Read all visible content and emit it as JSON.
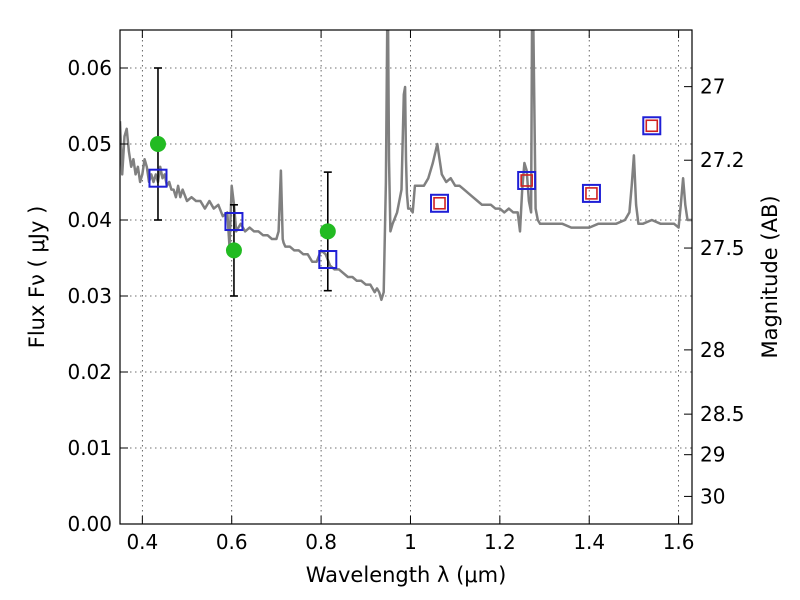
{
  "chart_data": {
    "type": "scatter",
    "xlabel": "Wavelength  λ (μm)",
    "ylabel": "Flux  Fν  ( μJy )",
    "y2label": "Magnitude (AB)",
    "xlim": [
      0.35,
      1.63
    ],
    "ylim": [
      0.0,
      0.065
    ],
    "grid": true,
    "x_ticks": [
      {
        "value": 0.4,
        "label": "0.4"
      },
      {
        "value": 0.6,
        "label": "0.6"
      },
      {
        "value": 0.8,
        "label": "0.8"
      },
      {
        "value": 1.0,
        "label": "1"
      },
      {
        "value": 1.2,
        "label": "1.2"
      },
      {
        "value": 1.4,
        "label": "1.4"
      },
      {
        "value": 1.6,
        "label": "1.6"
      }
    ],
    "y_ticks": [
      {
        "value": 0.0,
        "label": "0.00"
      },
      {
        "value": 0.01,
        "label": "0.01"
      },
      {
        "value": 0.02,
        "label": "0.02"
      },
      {
        "value": 0.03,
        "label": "0.03"
      },
      {
        "value": 0.04,
        "label": "0.04"
      },
      {
        "value": 0.05,
        "label": "0.05"
      },
      {
        "value": 0.06,
        "label": "0.06"
      }
    ],
    "mag_ticks": [
      {
        "value": 27,
        "label": "27"
      },
      {
        "value": 27.2,
        "label": "27.2"
      },
      {
        "value": 27.5,
        "label": "27.5"
      },
      {
        "value": 28,
        "label": "28"
      },
      {
        "value": 28.5,
        "label": "28.5"
      },
      {
        "value": 29,
        "label": "29"
      },
      {
        "value": 30,
        "label": "30"
      }
    ],
    "series": [
      {
        "type": "line",
        "color": "#808080",
        "x": [
          0.35,
          0.355,
          0.36,
          0.365,
          0.37,
          0.375,
          0.38,
          0.385,
          0.39,
          0.395,
          0.4,
          0.405,
          0.41,
          0.415,
          0.42,
          0.425,
          0.43,
          0.435,
          0.44,
          0.445,
          0.45,
          0.455,
          0.46,
          0.465,
          0.47,
          0.475,
          0.48,
          0.485,
          0.49,
          0.5,
          0.51,
          0.52,
          0.53,
          0.54,
          0.55,
          0.56,
          0.57,
          0.58,
          0.59,
          0.595,
          0.6,
          0.605,
          0.61,
          0.62,
          0.63,
          0.64,
          0.65,
          0.66,
          0.67,
          0.68,
          0.69,
          0.7,
          0.705,
          0.71,
          0.712,
          0.714,
          0.716,
          0.72,
          0.73,
          0.74,
          0.75,
          0.76,
          0.77,
          0.78,
          0.79,
          0.8,
          0.81,
          0.82,
          0.83,
          0.84,
          0.85,
          0.86,
          0.87,
          0.88,
          0.89,
          0.9,
          0.91,
          0.92,
          0.925,
          0.93,
          0.935,
          0.94,
          0.945,
          0.948,
          0.95,
          0.952,
          0.955,
          0.96,
          0.97,
          0.98,
          0.985,
          0.988,
          0.99,
          0.992,
          0.995,
          1.0,
          1.005,
          1.01,
          1.02,
          1.03,
          1.04,
          1.05,
          1.06,
          1.07,
          1.08,
          1.09,
          1.1,
          1.11,
          1.12,
          1.13,
          1.14,
          1.15,
          1.16,
          1.17,
          1.18,
          1.19,
          1.2,
          1.21,
          1.22,
          1.23,
          1.24,
          1.245,
          1.25,
          1.255,
          1.26,
          1.265,
          1.27,
          1.272,
          1.275,
          1.28,
          1.285,
          1.29,
          1.3,
          1.32,
          1.34,
          1.36,
          1.38,
          1.4,
          1.42,
          1.44,
          1.46,
          1.48,
          1.49,
          1.495,
          1.5,
          1.505,
          1.51,
          1.52,
          1.54,
          1.56,
          1.58,
          1.59,
          1.6,
          1.605,
          1.61,
          1.615,
          1.62,
          1.63
        ],
        "y": [
          0.053,
          0.046,
          0.051,
          0.052,
          0.049,
          0.047,
          0.048,
          0.046,
          0.047,
          0.045,
          0.046,
          0.048,
          0.047,
          0.045,
          0.046,
          0.045,
          0.046,
          0.045,
          0.047,
          0.0455,
          0.046,
          0.0445,
          0.045,
          0.044,
          0.044,
          0.043,
          0.0445,
          0.043,
          0.044,
          0.0425,
          0.043,
          0.0425,
          0.0425,
          0.0415,
          0.0425,
          0.0415,
          0.042,
          0.0405,
          0.041,
          0.0365,
          0.0445,
          0.042,
          0.0385,
          0.0395,
          0.0385,
          0.039,
          0.0385,
          0.0385,
          0.038,
          0.038,
          0.0375,
          0.0375,
          0.0385,
          0.0465,
          0.042,
          0.0375,
          0.037,
          0.0365,
          0.0365,
          0.036,
          0.036,
          0.0355,
          0.0355,
          0.0345,
          0.0345,
          0.036,
          0.0355,
          0.034,
          0.0335,
          0.0335,
          0.033,
          0.0325,
          0.0325,
          0.032,
          0.032,
          0.0315,
          0.0315,
          0.0305,
          0.031,
          0.0305,
          0.0295,
          0.0305,
          0.045,
          0.065,
          0.065,
          0.048,
          0.0385,
          0.0395,
          0.041,
          0.044,
          0.0565,
          0.0575,
          0.048,
          0.0435,
          0.0415,
          0.0415,
          0.041,
          0.0445,
          0.0445,
          0.0445,
          0.0455,
          0.0475,
          0.05,
          0.046,
          0.045,
          0.0455,
          0.0445,
          0.0445,
          0.044,
          0.0435,
          0.043,
          0.0425,
          0.042,
          0.042,
          0.042,
          0.0415,
          0.0415,
          0.041,
          0.0415,
          0.041,
          0.041,
          0.0385,
          0.044,
          0.0475,
          0.0465,
          0.0425,
          0.041,
          0.065,
          0.065,
          0.0415,
          0.04,
          0.0395,
          0.0395,
          0.0395,
          0.0395,
          0.039,
          0.039,
          0.039,
          0.0395,
          0.0395,
          0.0395,
          0.04,
          0.041,
          0.0445,
          0.0485,
          0.042,
          0.0395,
          0.0395,
          0.04,
          0.0395,
          0.0395,
          0.0395,
          0.039,
          0.042,
          0.0455,
          0.042,
          0.04,
          0.04
        ]
      },
      {
        "type": "scatter",
        "marker": "circle",
        "color": "#22bb22",
        "x": [
          0.435,
          0.605,
          0.815
        ],
        "y": [
          0.05,
          0.036,
          0.0385
        ]
      },
      {
        "type": "errorbar",
        "color": "#000000",
        "x": [
          0.435,
          0.605,
          0.815
        ],
        "low": [
          0.04,
          0.03,
          0.0307
        ],
        "high": [
          0.06,
          0.042,
          0.0463
        ]
      },
      {
        "type": "scatter",
        "marker": "square-open",
        "color": "#1f1fd6",
        "x": [
          0.435,
          0.605,
          0.815,
          1.065,
          1.26,
          1.405,
          1.54
        ],
        "y": [
          0.0455,
          0.0398,
          0.0348,
          0.0422,
          0.0452,
          0.0435,
          0.0524
        ]
      },
      {
        "type": "scatter",
        "marker": "square-open",
        "color": "#d02020",
        "x": [
          1.065,
          1.26,
          1.405,
          1.54
        ],
        "y": [
          0.0422,
          0.0452,
          0.0435,
          0.0524
        ]
      }
    ]
  }
}
